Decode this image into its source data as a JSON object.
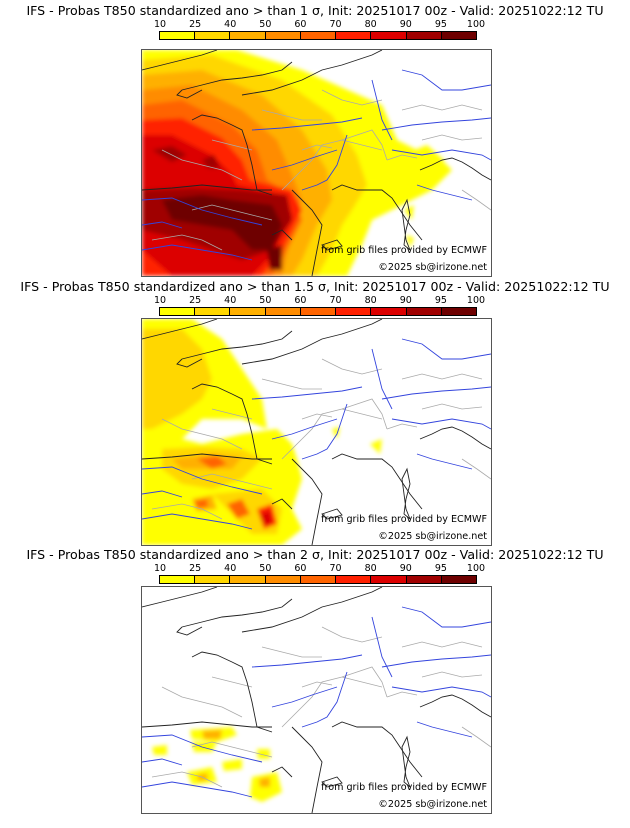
{
  "panels": [
    {
      "title": "IFS - Probas T850  standardized ano > than 1 σ, Init: 20251017 00z - Valid: 20251022:12 TU",
      "threshold_sigma": "1",
      "credit_source": "from grib files provided by ECMWF",
      "credit_copyright": "©2025 sb@irizone.net"
    },
    {
      "title": "IFS - Probas T850  standardized ano > than 1.5 σ, Init: 20251017 00z - Valid: 20251022:12 TU",
      "threshold_sigma": "1.5",
      "credit_source": "from grib files provided by ECMWF",
      "credit_copyright": "©2025 sb@irizone.net"
    },
    {
      "title": "IFS - Probas T850  standardized ano > than 2 σ, Init: 20251017 00z - Valid: 20251022:12 TU",
      "threshold_sigma": "2",
      "credit_source": "from grib files provided by ECMWF",
      "credit_copyright": "©2025 sb@irizone.net"
    }
  ],
  "colorbar": {
    "ticks": [
      "10",
      "25",
      "40",
      "50",
      "60",
      "70",
      "80",
      "90",
      "95",
      "100"
    ],
    "colors": [
      "#ffff00",
      "#ffd700",
      "#ffb000",
      "#ff8c00",
      "#ff6400",
      "#ff2000",
      "#dc0000",
      "#a00000",
      "#6e0000"
    ]
  },
  "map_colors": {
    "coast": "#222222",
    "rivers": "#3344dd",
    "borders": "#aaaaaa"
  }
}
